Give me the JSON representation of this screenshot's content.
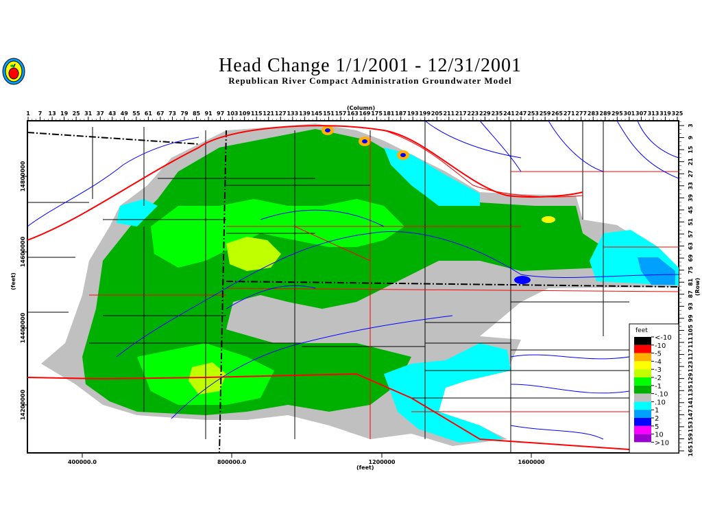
{
  "header": {
    "title": "Head Change 1/1/2001 - 12/31/2001",
    "subtitle": "Republican River Compact Administration Groundwater Model",
    "logo_icon": "apple-seal-logo"
  },
  "axes": {
    "top_label": "(Column)",
    "top_ticks": [
      1,
      7,
      13,
      19,
      25,
      31,
      37,
      43,
      49,
      55,
      61,
      67,
      73,
      79,
      85,
      91,
      97,
      103,
      109,
      115,
      121,
      127,
      133,
      139,
      145,
      151,
      157,
      163,
      169,
      175,
      181,
      187,
      193,
      199,
      205,
      211,
      217,
      223,
      229,
      235,
      241,
      247,
      253,
      259,
      265,
      271,
      277,
      283,
      289,
      295,
      301,
      307,
      313,
      319,
      325
    ],
    "right_label": "(Row)",
    "right_ticks": [
      3,
      9,
      15,
      21,
      27,
      33,
      39,
      45,
      51,
      57,
      63,
      69,
      75,
      81,
      87,
      93,
      99,
      105,
      111,
      117,
      123,
      129,
      135,
      141,
      147,
      153,
      159,
      165
    ],
    "bottom_label": "(feet)",
    "bottom_ticks": [
      "400000.0",
      "800000.0",
      "1200000",
      "1600000"
    ],
    "left_label": "(feet)",
    "left_ticks": [
      "14800000",
      "14600000",
      "14400000",
      "14200000"
    ]
  },
  "legend": {
    "title": "feet",
    "items": [
      {
        "label": "<-10",
        "color": "#000000"
      },
      {
        "label": "-10",
        "color": "#ff0000"
      },
      {
        "label": "-5",
        "color": "#ffb000"
      },
      {
        "label": "-4",
        "color": "#ffff00"
      },
      {
        "label": "-3",
        "color": "#c0ff00"
      },
      {
        "label": "-2",
        "color": "#00ff00"
      },
      {
        "label": "-1",
        "color": "#00b000"
      },
      {
        "label": "-.10",
        "color": "#c0c0c0"
      },
      {
        "label": ".10",
        "color": "#00ffff"
      },
      {
        "label": "1",
        "color": "#00a0ff"
      },
      {
        "label": "2",
        "color": "#0000ff"
      },
      {
        "label": "5",
        "color": "#ff00ff"
      },
      {
        "label": "10",
        "color": "#9900cc"
      },
      {
        "label": ">10",
        "color": ""
      }
    ]
  },
  "colors": {
    "river": "#0000ff",
    "road": "#ff0000",
    "boundary": "#000000"
  }
}
